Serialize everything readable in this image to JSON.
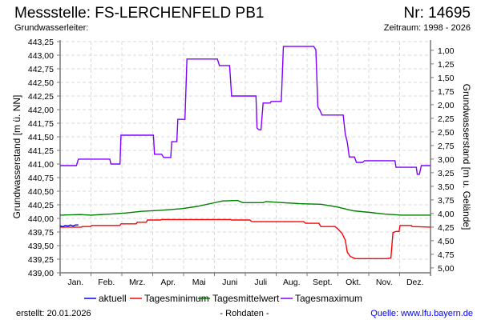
{
  "header": {
    "title": "Messstelle: FS-LERCHENFELD PB1",
    "number": "Nr: 14695",
    "aquifer": "Grundwasserleiter:",
    "period": "Zeitraum: 1998 - 2026"
  },
  "footer": {
    "created": "erstellt:  20.01.2026",
    "raw": "- Rohdaten -",
    "source": "Quelle: www.lfu.bayern.de"
  },
  "colors": {
    "aktuell": "#0000ff",
    "min": "#ff0000",
    "mean": "#008000",
    "max": "#8000ff",
    "source": "#0000ff"
  },
  "chart_data": {
    "type": "line",
    "ylabel": "Grundwasserstand [m ü. NN]",
    "ylabel_right": "Grundwasserstand [m u. Gelände]",
    "ylim": [
      439.0,
      443.25
    ],
    "yticks": [
      "443,25",
      "443,00",
      "442,75",
      "442,50",
      "442,25",
      "442,00",
      "441,75",
      "441,50",
      "441,25",
      "441,00",
      "440,75",
      "440,50",
      "440,25",
      "440,00",
      "439,75",
      "439,50",
      "439,25",
      "439,00"
    ],
    "ground_level": 444.09,
    "yticks_right": [
      "1,00",
      "1,25",
      "1,50",
      "1,75",
      "2,00",
      "2,25",
      "2,50",
      "2,75",
      "3,00",
      "3,25",
      "3,50",
      "3,75",
      "4,00",
      "4,25",
      "4,50",
      "4,75",
      "5,00"
    ],
    "xlim_days": [
      0,
      365
    ],
    "xticks": [
      "Jan.",
      "Feb.",
      "Mrz.",
      "Apr.",
      "Mai",
      "Juni",
      "Juli",
      "Aug.",
      "Sept.",
      "Okt.",
      "Nov.",
      "Dez."
    ],
    "grid": true,
    "legend_position": "bottom",
    "series": [
      {
        "name": "aktuell",
        "color": "#0000ff",
        "points": [
          [
            0,
            439.86
          ],
          [
            3,
            439.85
          ],
          [
            5,
            439.87
          ],
          [
            8,
            439.86
          ],
          [
            10,
            439.88
          ],
          [
            13,
            439.86
          ],
          [
            15,
            439.88
          ],
          [
            18,
            439.88
          ]
        ]
      },
      {
        "name": "Tagesminimum",
        "color": "#ff0000",
        "points": [
          [
            0,
            439.84
          ],
          [
            21,
            439.84
          ],
          [
            22,
            439.85
          ],
          [
            30,
            439.85
          ],
          [
            31,
            439.87
          ],
          [
            59,
            439.87
          ],
          [
            60,
            439.9
          ],
          [
            75,
            439.9
          ],
          [
            76,
            439.93
          ],
          [
            85,
            439.93
          ],
          [
            86,
            439.97
          ],
          [
            99,
            439.97
          ],
          [
            100,
            439.98
          ],
          [
            168,
            439.98
          ],
          [
            169,
            439.97
          ],
          [
            187,
            439.97
          ],
          [
            189,
            439.94
          ],
          [
            240,
            439.94
          ],
          [
            242,
            439.91
          ],
          [
            255,
            439.91
          ],
          [
            257,
            439.85
          ],
          [
            271,
            439.85
          ],
          [
            274,
            439.8
          ],
          [
            278,
            439.72
          ],
          [
            281,
            439.6
          ],
          [
            283,
            439.38
          ],
          [
            286,
            439.3
          ],
          [
            291,
            439.26
          ],
          [
            321,
            439.26
          ],
          [
            326,
            439.27
          ],
          [
            328,
            439.74
          ],
          [
            331,
            439.76
          ],
          [
            334,
            439.76
          ],
          [
            335,
            439.87
          ],
          [
            346,
            439.87
          ],
          [
            347,
            439.85
          ],
          [
            365,
            439.84
          ]
        ]
      },
      {
        "name": "Tagesmittelwert",
        "color": "#008000",
        "points": [
          [
            0,
            440.06
          ],
          [
            20,
            440.07
          ],
          [
            30,
            440.06
          ],
          [
            50,
            440.08
          ],
          [
            65,
            440.1
          ],
          [
            80,
            440.13
          ],
          [
            100,
            440.15
          ],
          [
            120,
            440.18
          ],
          [
            135,
            440.22
          ],
          [
            150,
            440.28
          ],
          [
            160,
            440.32
          ],
          [
            175,
            440.33
          ],
          [
            180,
            440.29
          ],
          [
            200,
            440.29
          ],
          [
            203,
            440.31
          ],
          [
            210,
            440.3
          ],
          [
            236,
            440.27
          ],
          [
            257,
            440.26
          ],
          [
            273,
            440.21
          ],
          [
            289,
            440.14
          ],
          [
            305,
            440.11
          ],
          [
            320,
            440.08
          ],
          [
            336,
            440.06
          ],
          [
            365,
            440.06
          ]
        ]
      },
      {
        "name": "Tagesmaximum",
        "color": "#8000ff",
        "points": [
          [
            0,
            440.97
          ],
          [
            16,
            440.97
          ],
          [
            18,
            441.09
          ],
          [
            49,
            441.09
          ],
          [
            50,
            441.0
          ],
          [
            59,
            441.0
          ],
          [
            60,
            441.53
          ],
          [
            92,
            441.53
          ],
          [
            93,
            441.18
          ],
          [
            100,
            441.18
          ],
          [
            102,
            441.12
          ],
          [
            109,
            441.12
          ],
          [
            110,
            441.41
          ],
          [
            115,
            441.41
          ],
          [
            116,
            441.82
          ],
          [
            123,
            441.82
          ],
          [
            125,
            442.93
          ],
          [
            155,
            442.93
          ],
          [
            157,
            442.81
          ],
          [
            167,
            442.81
          ],
          [
            169,
            442.25
          ],
          [
            193,
            442.25
          ],
          [
            194,
            441.66
          ],
          [
            196,
            441.63
          ],
          [
            198,
            441.63
          ],
          [
            200,
            442.12
          ],
          [
            207,
            442.12
          ],
          [
            208,
            442.15
          ],
          [
            218,
            442.15
          ],
          [
            220,
            443.16
          ],
          [
            250,
            443.16
          ],
          [
            252,
            443.1
          ],
          [
            254,
            442.05
          ],
          [
            256,
            441.99
          ],
          [
            258,
            441.9
          ],
          [
            279,
            441.9
          ],
          [
            281,
            441.55
          ],
          [
            283,
            441.4
          ],
          [
            285,
            441.13
          ],
          [
            290,
            441.13
          ],
          [
            292,
            441.03
          ],
          [
            298,
            441.03
          ],
          [
            300,
            441.06
          ],
          [
            330,
            441.06
          ],
          [
            331,
            440.94
          ],
          [
            351,
            440.94
          ],
          [
            352,
            440.81
          ],
          [
            354,
            440.81
          ],
          [
            356,
            440.97
          ],
          [
            365,
            440.97
          ]
        ]
      }
    ],
    "legend": [
      "aktuell",
      "Tagesminimum",
      "Tagesmittelwert",
      "Tagesmaximum"
    ]
  }
}
